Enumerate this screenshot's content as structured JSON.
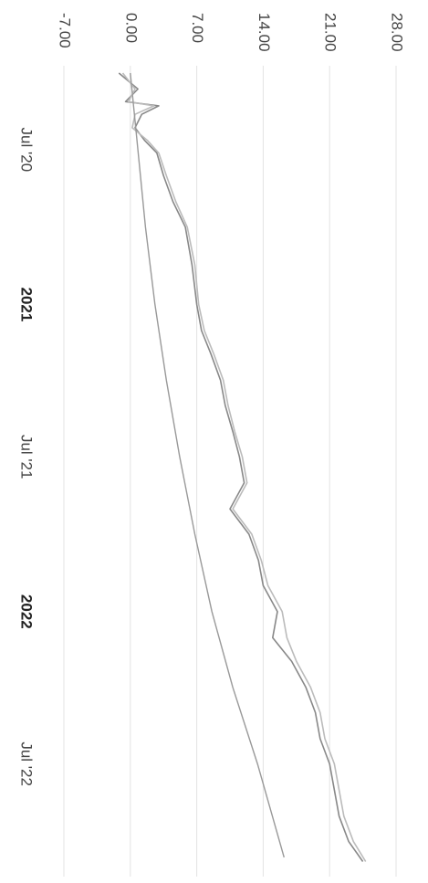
{
  "chart_data": {
    "type": "line",
    "orientation": "rotated-90-clockwise",
    "y_ticks": [
      "28.00",
      "21.00",
      "14.00",
      "7.00",
      "0.00",
      "-7.00"
    ],
    "y_tick_values": [
      28,
      21,
      14,
      7,
      0,
      -7
    ],
    "ylim": [
      -7,
      28
    ],
    "x_ticks": [
      {
        "label": "Jul '20",
        "date": "2020-07-01",
        "bold": false
      },
      {
        "label": "2021",
        "date": "2021-01-01",
        "bold": true
      },
      {
        "label": "Jul '21",
        "date": "2021-07-01",
        "bold": false
      },
      {
        "label": "2022",
        "date": "2022-01-01",
        "bold": true
      },
      {
        "label": "Jul '22",
        "date": "2022-07-01",
        "bold": false
      }
    ],
    "xlim": [
      "2020-04-01",
      "2022-11-01"
    ],
    "grid": true,
    "series": [
      {
        "color": "#888888",
        "points": [
          [
            "2020-04-01",
            -1.2
          ],
          [
            "2020-04-20",
            0.8
          ],
          [
            "2020-05-05",
            -0.5
          ],
          [
            "2020-05-10",
            3.0
          ],
          [
            "2020-05-20",
            1.2
          ],
          [
            "2020-06-05",
            0.5
          ],
          [
            "2020-06-20",
            1.5
          ],
          [
            "2020-07-05",
            2.8
          ],
          [
            "2020-08-01",
            3.5
          ],
          [
            "2020-09-01",
            4.5
          ],
          [
            "2020-10-01",
            5.8
          ],
          [
            "2020-11-15",
            6.5
          ],
          [
            "2021-01-01",
            7.0
          ],
          [
            "2021-02-01",
            7.5
          ],
          [
            "2021-03-01",
            8.5
          ],
          [
            "2021-04-01",
            9.5
          ],
          [
            "2021-05-01",
            10.0
          ],
          [
            "2021-06-01",
            10.8
          ],
          [
            "2021-07-01",
            11.5
          ],
          [
            "2021-08-01",
            12.0
          ],
          [
            "2021-09-01",
            10.5
          ],
          [
            "2021-10-01",
            12.5
          ],
          [
            "2021-11-01",
            13.5
          ],
          [
            "2021-12-01",
            14.0
          ],
          [
            "2022-01-01",
            15.5
          ],
          [
            "2022-02-01",
            15.0
          ],
          [
            "2022-03-01",
            17.0
          ],
          [
            "2022-04-01",
            18.5
          ],
          [
            "2022-05-01",
            19.5
          ],
          [
            "2022-06-01",
            20.0
          ],
          [
            "2022-07-01",
            21.0
          ],
          [
            "2022-08-01",
            21.5
          ],
          [
            "2022-09-01",
            22.0
          ],
          [
            "2022-10-01",
            23.0
          ],
          [
            "2022-10-25",
            24.5
          ]
        ]
      },
      {
        "color": "#bbbbbb",
        "points": [
          [
            "2020-04-01",
            -0.8
          ],
          [
            "2020-04-20",
            0.5
          ],
          [
            "2020-05-05",
            -0.2
          ],
          [
            "2020-05-10",
            2.5
          ],
          [
            "2020-05-20",
            0.5
          ],
          [
            "2020-06-05",
            0.2
          ],
          [
            "2020-06-20",
            1.8
          ],
          [
            "2020-07-05",
            3.0
          ],
          [
            "2020-08-01",
            3.8
          ],
          [
            "2020-09-01",
            4.8
          ],
          [
            "2020-10-01",
            6.0
          ],
          [
            "2020-11-15",
            6.8
          ],
          [
            "2021-01-01",
            7.2
          ],
          [
            "2021-02-01",
            7.8
          ],
          [
            "2021-03-01",
            8.8
          ],
          [
            "2021-04-01",
            9.8
          ],
          [
            "2021-05-01",
            10.3
          ],
          [
            "2021-06-01",
            11.0
          ],
          [
            "2021-07-01",
            11.8
          ],
          [
            "2021-08-01",
            12.3
          ],
          [
            "2021-09-01",
            10.8
          ],
          [
            "2021-10-01",
            12.8
          ],
          [
            "2021-11-01",
            13.8
          ],
          [
            "2021-12-01",
            14.5
          ],
          [
            "2022-01-01",
            16.0
          ],
          [
            "2022-02-01",
            16.5
          ],
          [
            "2022-03-01",
            17.5
          ],
          [
            "2022-04-01",
            19.0
          ],
          [
            "2022-05-01",
            20.0
          ],
          [
            "2022-06-01",
            20.5
          ],
          [
            "2022-07-01",
            21.5
          ],
          [
            "2022-08-01",
            22.0
          ],
          [
            "2022-09-01",
            22.5
          ],
          [
            "2022-10-01",
            23.5
          ],
          [
            "2022-10-25",
            24.8
          ]
        ]
      },
      {
        "color": "#999999",
        "points": [
          [
            "2020-04-01",
            0.0
          ],
          [
            "2020-07-01",
            0.8
          ],
          [
            "2020-10-01",
            1.6
          ],
          [
            "2021-01-01",
            2.6
          ],
          [
            "2021-04-01",
            3.8
          ],
          [
            "2021-07-01",
            5.2
          ],
          [
            "2021-10-01",
            6.8
          ],
          [
            "2022-01-01",
            8.6
          ],
          [
            "2022-04-01",
            10.8
          ],
          [
            "2022-07-01",
            13.4
          ],
          [
            "2022-10-20",
            16.2
          ]
        ]
      }
    ]
  }
}
